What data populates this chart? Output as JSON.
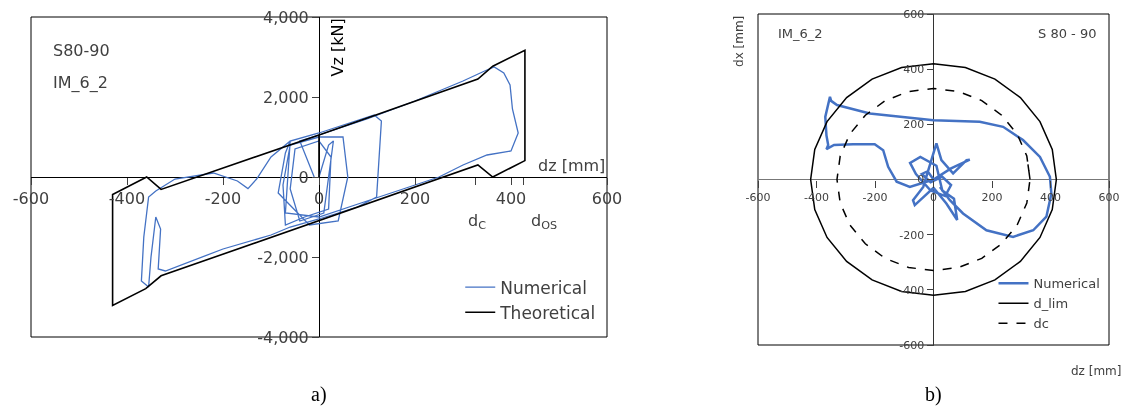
{
  "chart_data": [
    {
      "type": "line",
      "xlabel": "dz [mm]",
      "ylabel": "Vz [kN]",
      "xlim": [
        -600,
        600
      ],
      "xticks": [
        -600,
        -400,
        -200,
        0,
        200,
        400,
        600,
        {
          "value": 325,
          "label": null
        },
        {
          "value": 427,
          "label": null
        }
      ],
      "ylim": [
        -4000,
        4000
      ],
      "yticks": [
        {
          "value": -4000,
          "label": "-4,000"
        },
        {
          "value": -2000,
          "label": "-2,000"
        },
        0,
        {
          "value": 2000,
          "label": "2,000"
        },
        {
          "value": 4000,
          "label": "4,000"
        }
      ],
      "legend": "bottom right",
      "annotations": [
        "S80-90",
        "IM_6_2",
        "a)",
        "d$_{C}$",
        "d$_{OS}$"
      ],
      "series": [
        {
          "name": "Numerical",
          "color": "#4472c4",
          "line_style": "solid",
          "x": [
            0,
            20,
            30,
            10,
            -40,
            -60,
            -50,
            0,
            25,
            20,
            -30,
            -70,
            -75,
            -60,
            0,
            50,
            60,
            40,
            -20,
            -85,
            -70,
            -60,
            -100,
            -130,
            -148,
            -170,
            -220,
            -300,
            -340,
            -355,
            -365,
            -370,
            -355,
            -350,
            -340,
            -330,
            -335,
            -320,
            -200,
            -100,
            -60,
            0,
            80,
            120,
            130,
            115,
            0,
            -60,
            -70,
            0,
            100,
            200,
            250,
            300,
            350,
            400,
            415,
            403,
            398,
            385,
            365,
            345,
            300,
            200,
            100,
            0,
            -40,
            -10
          ],
          "values": [
            0,
            800,
            900,
            -900,
            -1100,
            -300,
            700,
            900,
            500,
            -800,
            -1000,
            -1200,
            -200,
            800,
            1000,
            1000,
            0,
            -1100,
            -1200,
            -400,
            600,
            900,
            500,
            -50,
            -290,
            -100,
            100,
            -50,
            -350,
            -500,
            -1500,
            -2600,
            -2750,
            -2000,
            -1000,
            -1300,
            -2300,
            -2350,
            -1800,
            -1450,
            -1250,
            -1050,
            -750,
            -500,
            1400,
            1550,
            1100,
            900,
            -900,
            -1000,
            -600,
            -200,
            0,
            300,
            550,
            650,
            1100,
            1700,
            2300,
            2600,
            2750,
            2650,
            2400,
            1900,
            1450,
            1050,
            900,
            0
          ]
        },
        {
          "name": "Theoretical",
          "color": "#000000",
          "line_style": "solid",
          "x": [
            0,
            0,
            331,
            362,
            429,
            429,
            362,
            331,
            -329,
            -361,
            -430,
            -430,
            -359,
            -329,
            0
          ],
          "values": [
            0,
            1050,
            2450,
            2770,
            3170,
            410,
            0,
            300,
            -2470,
            -2790,
            -3210,
            -440,
            0,
            -310,
            1050
          ]
        }
      ]
    },
    {
      "type": "line",
      "xlabel": "dz [mm]",
      "ylabel": "dx [mm]",
      "xlim": [
        -600,
        600
      ],
      "xticks": [
        -600,
        -400,
        -200,
        0,
        200,
        400,
        600
      ],
      "ylim": [
        -600,
        600
      ],
      "yticks": [
        -600,
        -400,
        -200,
        0,
        200,
        400,
        600
      ],
      "legend": "bottom right",
      "annotations": [
        "IM_6_2",
        "S 80 - 90",
        "b)"
      ],
      "series": [
        {
          "name": "Numerical",
          "color": "#4472c4",
          "line_style": "solid",
          "x": [
            0,
            -20,
            -40,
            -10,
            30,
            60,
            40,
            -10,
            -60,
            -80,
            -45,
            10,
            30,
            70,
            81,
            44,
            0,
            -64,
            -70,
            -35,
            10,
            27,
            67,
            113,
            124,
            60,
            0,
            -81,
            -126,
            -155,
            -172,
            -201,
            -275,
            -340,
            -366,
            -360,
            -366,
            -370,
            -354,
            -350,
            -330,
            -218,
            0,
            158,
            238,
            306,
            364,
            398,
            403,
            386,
            341,
            272,
            181,
            101,
            56,
            22
          ],
          "values": [
            0,
            30,
            20,
            -10,
            10,
            -20,
            -60,
            -40,
            20,
            60,
            82,
            50,
            -40,
            -70,
            -147,
            -87,
            -30,
            -93,
            -75,
            -27,
            131,
            70,
            22,
            70,
            72,
            40,
            0,
            -27,
            -8,
            46,
            106,
            128,
            128,
            125,
            110,
            125,
            160,
            227,
            300,
            285,
            270,
            239,
            215,
            209,
            191,
            143,
            82,
            10,
            -51,
            -135,
            -184,
            -208,
            -184,
            -123,
            -75,
            -27
          ]
        },
        {
          "name": "d_lim",
          "color": "#000000",
          "line_style": "solid",
          "x": [
            420,
            406,
            364,
            297,
            210,
            109,
            0,
            -109,
            -210,
            -297,
            -364,
            -406,
            -420,
            -406,
            -364,
            -297,
            -210,
            -109,
            0,
            109,
            210,
            297,
            364,
            406,
            420,
            406
          ],
          "values": [
            0,
            109,
            210,
            297,
            364,
            406,
            420,
            406,
            364,
            297,
            210,
            109,
            0,
            -109,
            -210,
            -297,
            -364,
            -406,
            -420,
            -406,
            -364,
            -297,
            -210,
            -109,
            0,
            109
          ]
        },
        {
          "name": "dc",
          "color": "#000000",
          "line_style": "dashed",
          "x": [
            330,
            319,
            286,
            233,
            165,
            85,
            0,
            -85,
            -165,
            -233,
            -286,
            -319,
            -330,
            -319,
            -286,
            -233,
            -165,
            -85,
            0,
            85,
            165,
            233,
            286,
            319,
            330,
            319
          ],
          "values": [
            0,
            85,
            165,
            233,
            286,
            319,
            330,
            319,
            286,
            233,
            165,
            85,
            0,
            -85,
            -165,
            -233,
            -286,
            -319,
            -330,
            -319,
            -286,
            -233,
            -165,
            -85,
            0,
            85
          ]
        }
      ]
    }
  ]
}
